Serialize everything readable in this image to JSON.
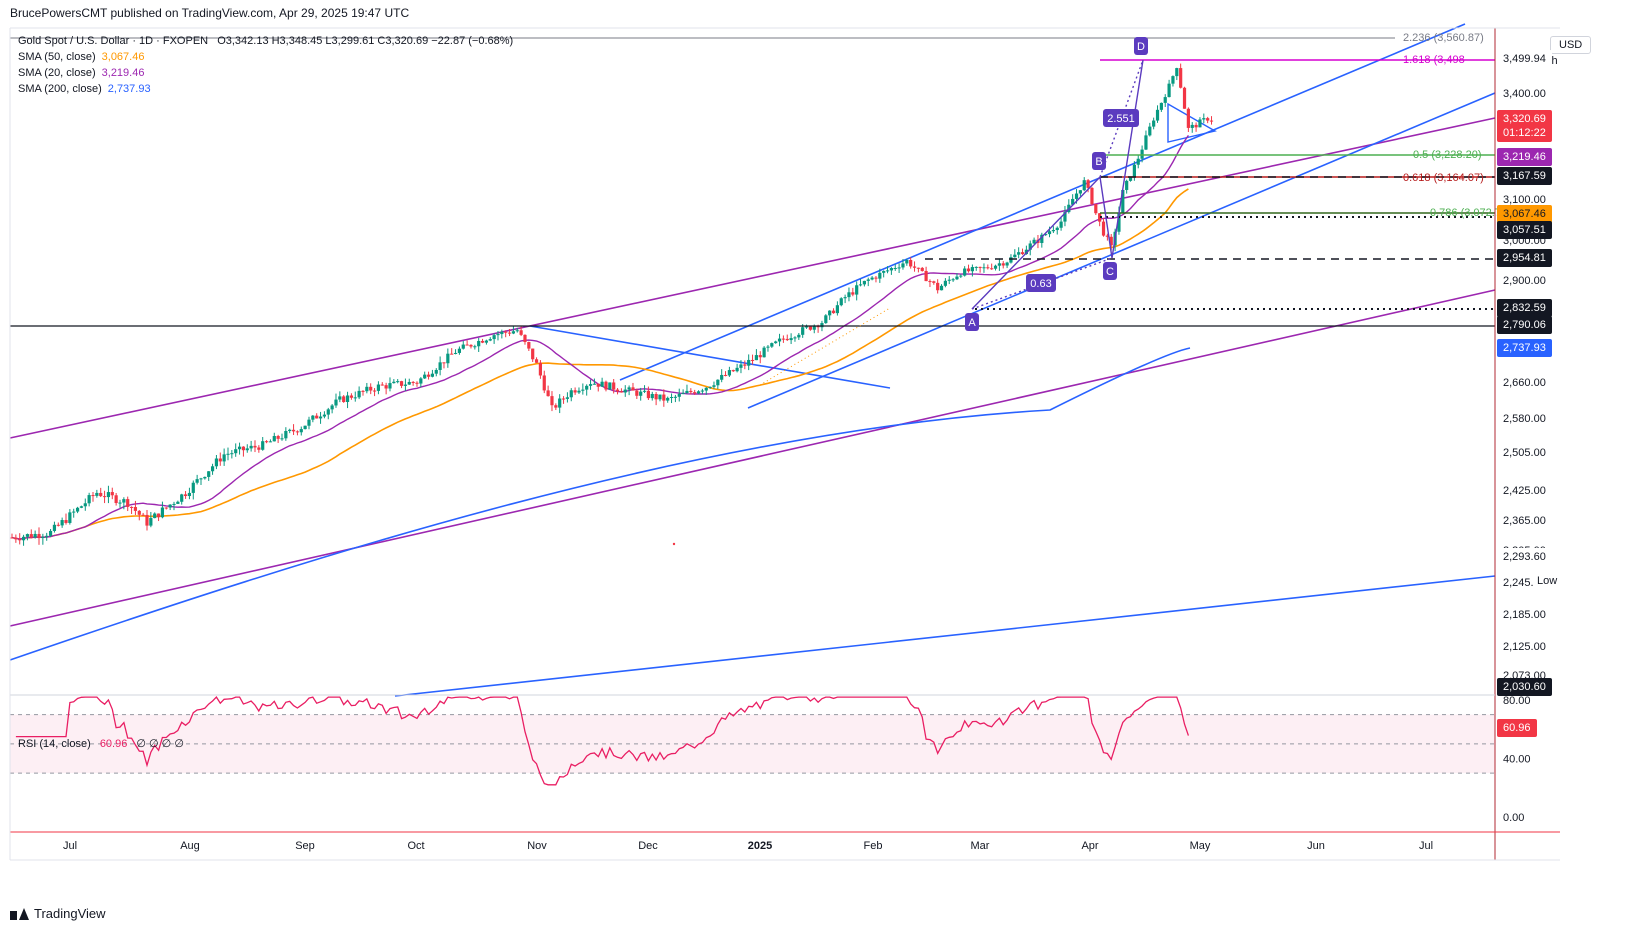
{
  "publish_line": "BrucePowersCMT published on TradingView.com, Apr 29, 2025 19:47 UTC",
  "footer_brand": "TradingView",
  "currency": "USD",
  "legend": {
    "symbol_line": "Gold Spot / U.S. Dollar · 1D · FXOPEN",
    "ohlc": "O3,342.13 H3,348.45 L3,299.61 C3,320.69 −22.87 (−0.68%)",
    "sma50_label": "SMA (50, close)",
    "sma50_value": "3,067.46",
    "sma20_label": "SMA (20, close)",
    "sma20_value": "3,219.46",
    "sma200_label": "SMA (200, close)",
    "sma200_value": "2,737.93"
  },
  "rsi_legend": {
    "label": "RSI (14, close)",
    "value": "60.96",
    "extra": "∅ ∅ ∅ ∅"
  },
  "high_label": "High",
  "low_label": "Low",
  "colors": {
    "up": "#089981",
    "down": "#f23645",
    "sma50": "#ff9800",
    "sma20": "#9c27b0",
    "sma200": "#2962ff",
    "channel": "#9c27b0",
    "trend": "#2962ff",
    "rsi": "#e91e63",
    "fib_magenta": "#d500d0",
    "fib_green": "#4caf50",
    "fib_red": "#b71c1c",
    "wave": "#5b3bbf"
  },
  "chart_data": {
    "type": "candlestick",
    "title": "Gold Spot / U.S. Dollar · 1D · FXOPEN",
    "ylim": [
      2030,
      3600
    ],
    "x_ticks": [
      "Jul",
      "Aug",
      "Sep",
      "Oct",
      "Nov",
      "Dec",
      "2025",
      "Feb",
      "Mar",
      "Apr",
      "May",
      "Jun",
      "Jul"
    ],
    "price_ticks": [
      "3,400.00",
      "3,100.00",
      "3,000.00",
      "2,900.00",
      "2,660.00",
      "2,580.00",
      "2,505.00",
      "2,425.00",
      "2,365.00",
      "2,305.00",
      "2,245.00",
      "2,185.00",
      "2,125.00",
      "2,073.00"
    ],
    "tick_values": [
      3400,
      3100,
      3000,
      2900,
      2660,
      2580,
      2505,
      2425,
      2365,
      2305,
      2245,
      2185,
      2125,
      2073
    ],
    "price_tags": [
      {
        "text": "3,499.94",
        "price": 3499.94,
        "style": "plain"
      },
      {
        "text": "3,320.69",
        "price": 3320.69,
        "style": "red"
      },
      {
        "text": "01:12:22",
        "price": 3290,
        "style": "red"
      },
      {
        "text": "3,219.46",
        "price": 3219.46,
        "style": "purple"
      },
      {
        "text": "3,167.59",
        "price": 3167.59,
        "style": "black"
      },
      {
        "text": "3,067.46",
        "price": 3067.46,
        "style": "orange"
      },
      {
        "text": "3,057.51",
        "price": 3057.51,
        "style": "black"
      },
      {
        "text": "2,954.81",
        "price": 2954.81,
        "style": "black"
      },
      {
        "text": "2,832.59",
        "price": 2832.59,
        "style": "black"
      },
      {
        "text": "2,790.06",
        "price": 2790.06,
        "style": "black"
      },
      {
        "text": "2,737.93",
        "price": 2737.93,
        "style": "blue"
      },
      {
        "text": "2,293.60",
        "price": 2293.6,
        "style": "plain"
      },
      {
        "text": "2,030.60",
        "price": 2030.6,
        "style": "black"
      }
    ],
    "fib_levels": [
      {
        "text": "2.236 (3,560.87)",
        "price": 3560.87,
        "color": "gray"
      },
      {
        "text": "1.618 (3,498",
        "price": 3498,
        "color": "magenta"
      },
      {
        "text": "0.5 (3,228.20)",
        "price": 3228.2,
        "color": "green"
      },
      {
        "text": "0.618 (3,164.07)",
        "price": 3164.07,
        "color": "red"
      },
      {
        "text": "0.786 (3,072.76)",
        "price": 3072.76,
        "color": "green"
      }
    ],
    "wave_labels": [
      {
        "text": "A",
        "date_index": 166,
        "price": 2820
      },
      {
        "text": "B",
        "date_index": 190,
        "price": 3190
      },
      {
        "text": "C",
        "date_index": 193,
        "price": 2940
      },
      {
        "text": "D",
        "date_index": 197,
        "price": 3560
      }
    ],
    "ratio_labels": [
      "2.551",
      "0.63"
    ],
    "monthly_close": [
      {
        "month": "Jul",
        "close": 2440
      },
      {
        "month": "Aug",
        "close": 2500
      },
      {
        "month": "Sep",
        "close": 2635
      },
      {
        "month": "Oct",
        "close": 2745
      },
      {
        "month": "Nov",
        "close": 2650
      },
      {
        "month": "Dec",
        "close": 2625
      },
      {
        "month": "Jan",
        "close": 2800
      },
      {
        "month": "Feb",
        "close": 2858
      },
      {
        "month": "Mar",
        "close": 3124
      },
      {
        "month": "Apr",
        "close": 3320.69
      }
    ],
    "rsi": {
      "label": "RSI (14, close)",
      "current": 60.96,
      "levels": [
        70,
        50,
        30
      ],
      "ticks": [
        "80.00",
        "40.00",
        "0.00"
      ],
      "tick_values": [
        80,
        40,
        0
      ]
    }
  }
}
